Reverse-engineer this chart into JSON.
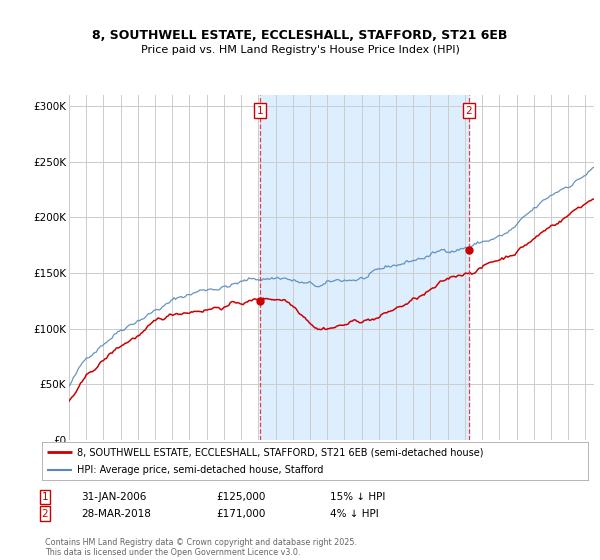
{
  "title_line1": "8, SOUTHWELL ESTATE, ECCLESHALL, STAFFORD, ST21 6EB",
  "title_line2": "Price paid vs. HM Land Registry's House Price Index (HPI)",
  "background_color": "#ffffff",
  "plot_bg_color": "#ffffff",
  "shade_color": "#ddeeff",
  "red_line_label": "8, SOUTHWELL ESTATE, ECCLESHALL, STAFFORD, ST21 6EB (semi-detached house)",
  "blue_line_label": "HPI: Average price, semi-detached house, Stafford",
  "annotation1_date": "31-JAN-2006",
  "annotation1_price": "£125,000",
  "annotation1_hpi": "15% ↓ HPI",
  "annotation2_date": "28-MAR-2018",
  "annotation2_price": "£171,000",
  "annotation2_hpi": "4% ↓ HPI",
  "footnote": "Contains HM Land Registry data © Crown copyright and database right 2025.\nThis data is licensed under the Open Government Licence v3.0.",
  "vline1_x": 2006.08,
  "vline2_x": 2018.24,
  "sale1_x": 2006.08,
  "sale1_y": 125000,
  "sale2_x": 2018.24,
  "sale2_y": 171000,
  "ylim_min": 0,
  "ylim_max": 310000,
  "xlim_min": 1995,
  "xlim_max": 2025.5,
  "yticks": [
    0,
    50000,
    100000,
    150000,
    200000,
    250000,
    300000
  ],
  "ytick_labels": [
    "£0",
    "£50K",
    "£100K",
    "£150K",
    "£200K",
    "£250K",
    "£300K"
  ],
  "xticks": [
    1995,
    1996,
    1997,
    1998,
    1999,
    2000,
    2001,
    2002,
    2003,
    2004,
    2005,
    2006,
    2007,
    2008,
    2009,
    2010,
    2011,
    2012,
    2013,
    2014,
    2015,
    2016,
    2017,
    2018,
    2019,
    2020,
    2021,
    2022,
    2023,
    2024,
    2025
  ],
  "red_color": "#cc0000",
  "blue_color": "#5588bb",
  "vline_color": "#dd4444",
  "dot_color": "#cc0000",
  "grid_color": "#cccccc"
}
